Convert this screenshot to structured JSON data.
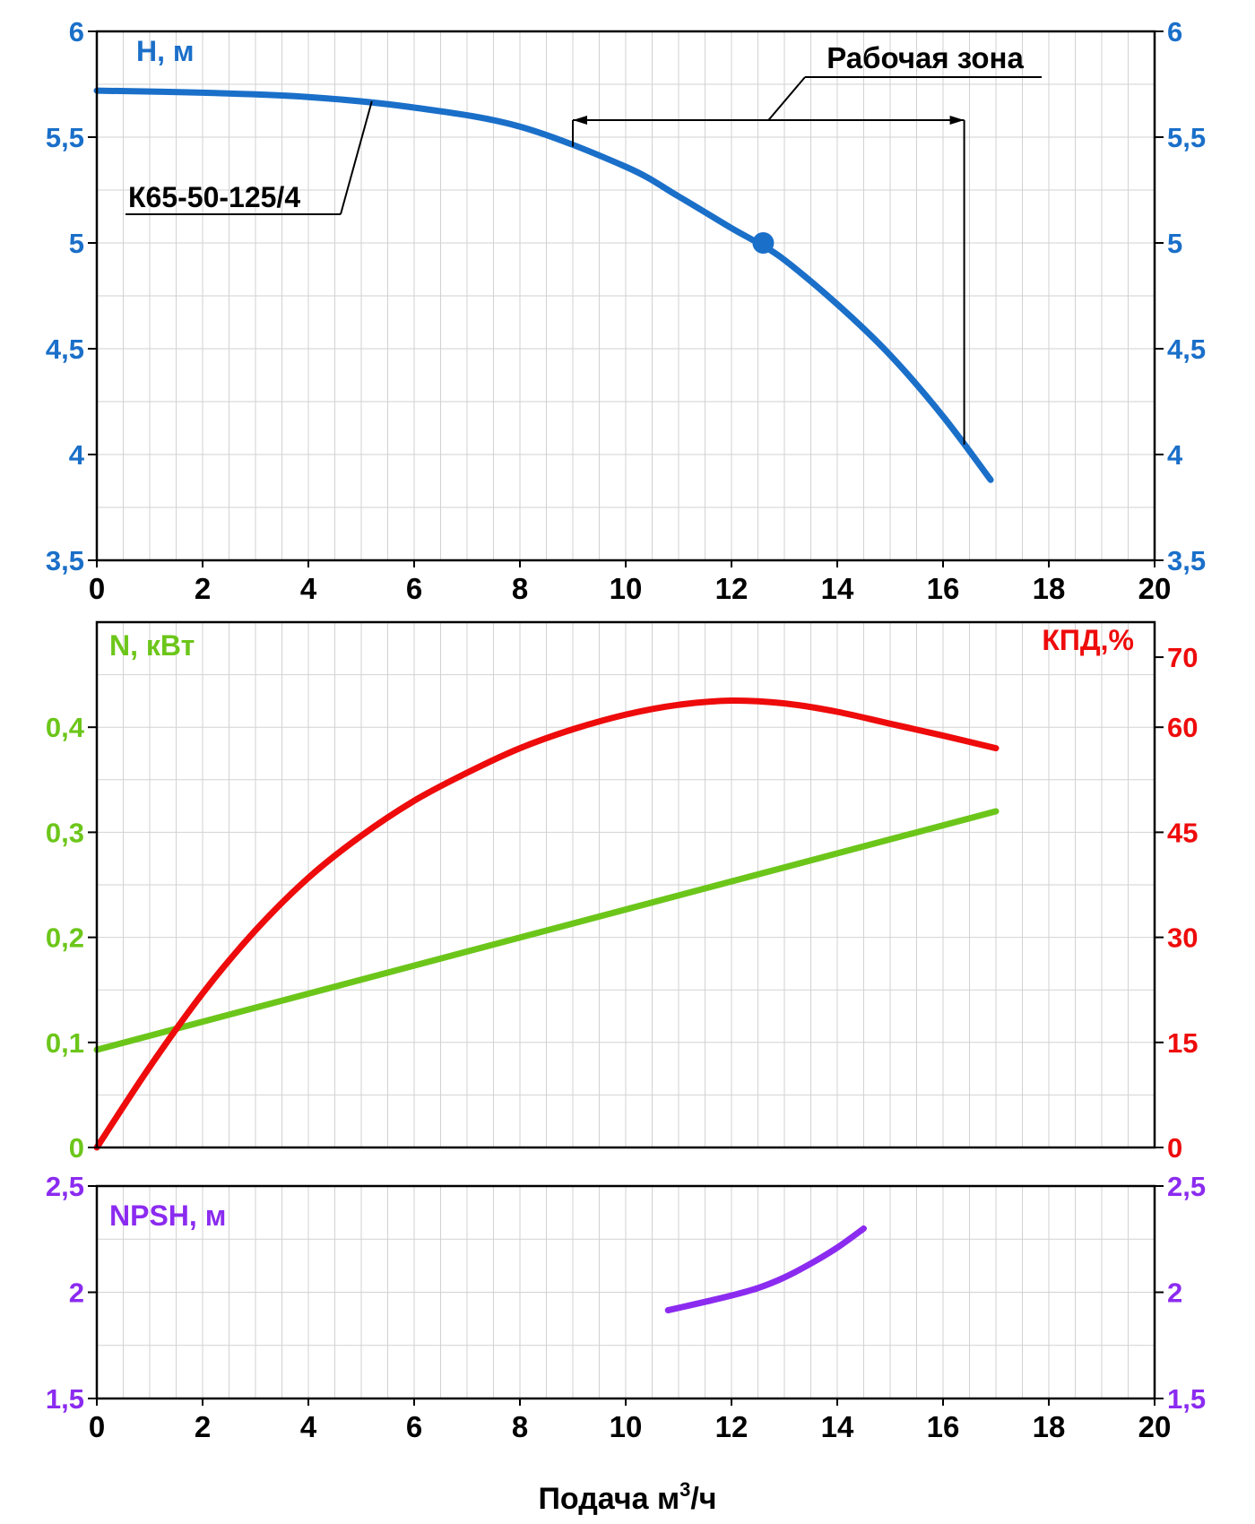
{
  "colors": {
    "head": "#1a6fc9",
    "power": "#6cc61a",
    "efficiency": "#ee0b0b",
    "npsh": "#8b2bf0",
    "axis": "#000000",
    "grid": "#d2d2d2",
    "text": "#000000"
  },
  "chart_data": [
    {
      "type": "line",
      "panel": "head",
      "ylabel": "H, м",
      "xlim": [
        0,
        20
      ],
      "ylim": [
        3.5,
        6
      ],
      "xticks": [
        "0",
        "2",
        "4",
        "6",
        "8",
        "10",
        "12",
        "14",
        "16",
        "18",
        "20"
      ],
      "yticks": [
        "3,5",
        "4",
        "4,5",
        "5",
        "5,5",
        "6"
      ],
      "grid": true,
      "series": [
        {
          "name": "К65-50-125/4",
          "x": [
            0,
            2,
            4,
            6,
            8,
            10,
            11,
            12,
            12.5,
            13,
            14,
            15,
            16,
            16.9
          ],
          "y": [
            5.72,
            5.71,
            5.69,
            5.64,
            5.55,
            5.36,
            5.22,
            5.07,
            5.0,
            4.92,
            4.71,
            4.47,
            4.18,
            3.88
          ]
        }
      ],
      "duty_point": {
        "x": 12.6,
        "y": 5.0
      },
      "working_zone": {
        "label": "Рабочая зона",
        "x_from": 9,
        "x_to": 16.4
      },
      "curve_label": "К65-50-125/4"
    },
    {
      "type": "line",
      "panel": "power-efficiency",
      "ylabel": "N, кВт",
      "ylabel_right": "КПД,%",
      "xlim": [
        0,
        20
      ],
      "ylim": [
        0,
        0.5
      ],
      "ylim_right": [
        0,
        75
      ],
      "yticks": [
        "0",
        "0,1",
        "0,2",
        "0,3",
        "0,4"
      ],
      "yticks_right": [
        "0",
        "15",
        "30",
        "45",
        "60",
        "70"
      ],
      "grid": true,
      "series": [
        {
          "name": "N, кВт",
          "axis": "left",
          "x": [
            0,
            17
          ],
          "y": [
            0.093,
            0.32
          ]
        },
        {
          "name": "КПД,%",
          "axis": "right",
          "x": [
            0,
            1,
            2,
            3,
            4,
            5,
            6,
            7,
            8,
            9,
            10,
            11,
            12,
            13,
            14,
            15,
            16,
            17
          ],
          "y": [
            0,
            11.5,
            22,
            31,
            38.5,
            44.5,
            49.5,
            53.5,
            57,
            59.7,
            61.8,
            63.2,
            63.8,
            63.4,
            62.2,
            60.5,
            58.8,
            57
          ]
        }
      ]
    },
    {
      "type": "line",
      "panel": "npsh",
      "ylabel": "NPSH, м",
      "xlabel": "Подача м³/ч",
      "xlim": [
        0,
        20
      ],
      "ylim": [
        1.5,
        2.5
      ],
      "xticks": [
        "0",
        "2",
        "4",
        "6",
        "8",
        "10",
        "12",
        "14",
        "16",
        "18",
        "20"
      ],
      "yticks": [
        "1,5",
        "2",
        "2,5"
      ],
      "grid": true,
      "series": [
        {
          "name": "NPSH, м",
          "x": [
            10.8,
            11.5,
            12,
            12.5,
            13,
            13.5,
            14,
            14.5
          ],
          "y": [
            1.915,
            1.955,
            1.985,
            2.02,
            2.07,
            2.135,
            2.21,
            2.3
          ]
        }
      ]
    }
  ],
  "labels": {
    "head_axis": "H, м",
    "power_axis": "N, кВт",
    "efficiency_axis": "КПД,%",
    "npsh_axis": "NPSH, м",
    "x_axis": "Подача м³/ч",
    "working_zone": "Рабочая зона",
    "pump_model": "К65-50-125/4"
  }
}
